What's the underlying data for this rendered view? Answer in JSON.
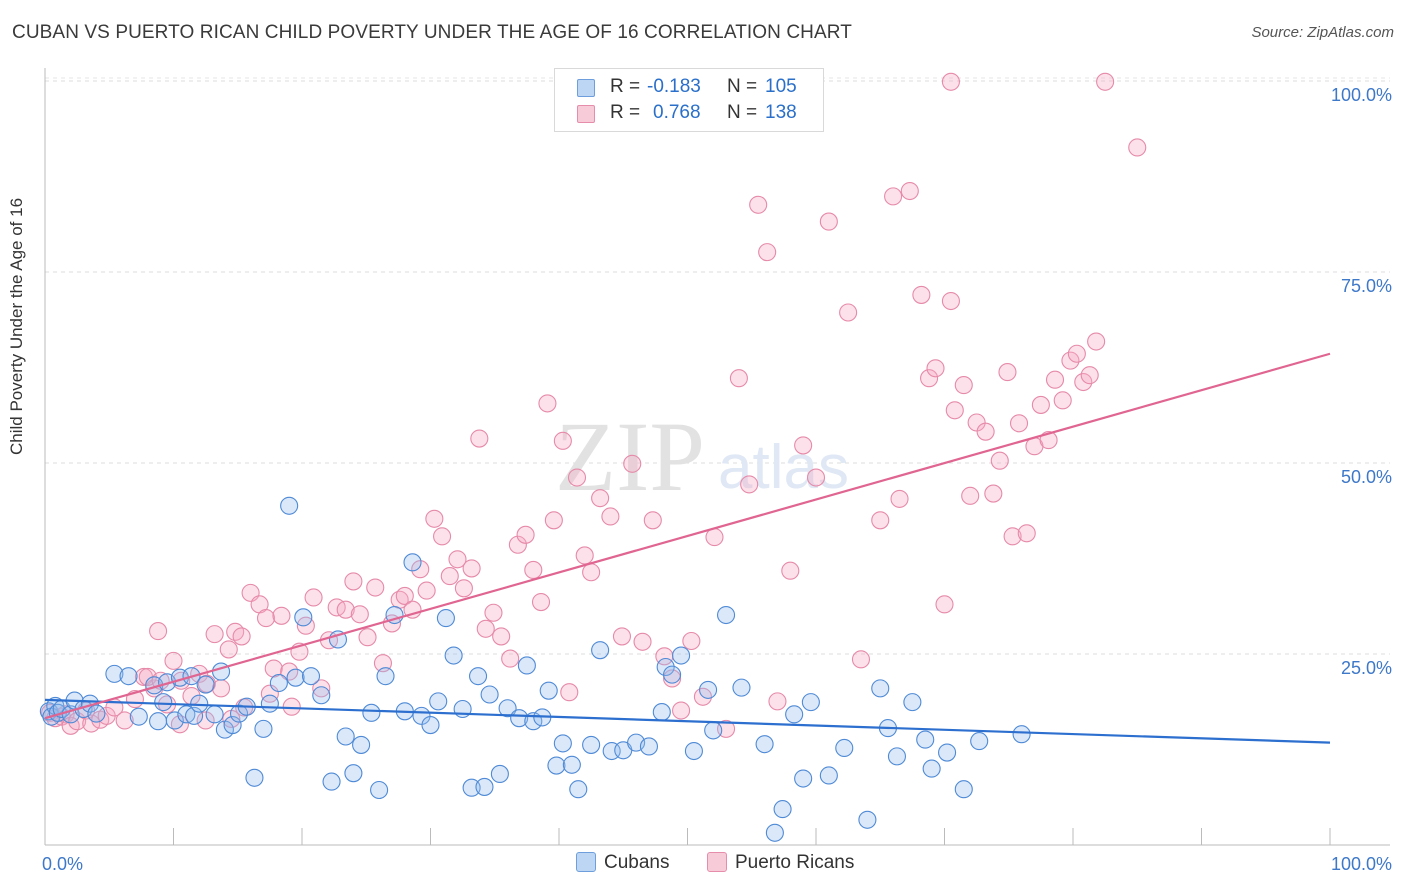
{
  "title": "CUBAN VS PUERTO RICAN CHILD POVERTY UNDER THE AGE OF 16 CORRELATION CHART",
  "source": "Source: ZipAtlas.com",
  "watermark": {
    "zip": "ZIP",
    "atlas": "atlas"
  },
  "legend": {
    "r_label": "R =",
    "n_label": "N =",
    "cubans": {
      "r": "-0.183",
      "n": "105",
      "color": "#9cc3ee",
      "stroke": "#4a86d4"
    },
    "puerto_ricans": {
      "r": "0.768",
      "n": "138",
      "color": "#f5b8cb",
      "stroke": "#e07fa0"
    }
  },
  "bottom_legend": {
    "cubans": "Cubans",
    "puerto_ricans": "Puerto Ricans"
  },
  "chart_data": {
    "type": "scatter",
    "title": "CUBAN VS PUERTO RICAN CHILD POVERTY UNDER THE AGE OF 16 CORRELATION CHART",
    "xlabel": "",
    "ylabel": "Child Poverty Under the Age of 16",
    "xlim": [
      0,
      100
    ],
    "ylim": [
      0,
      102
    ],
    "x_tick_labels": [
      "0.0%",
      "100.0%"
    ],
    "y_ticks": [
      25,
      50,
      75,
      100
    ],
    "y_tick_labels": [
      "25.0%",
      "50.0%",
      "75.0%",
      "100.0%"
    ],
    "series": [
      {
        "name": "Cubans",
        "color": "#4a86d4",
        "trend": {
          "x": [
            0,
            100
          ],
          "y": [
            19.0,
            13.4
          ]
        },
        "points": [
          [
            0.3,
            17.5
          ],
          [
            0.5,
            16.8
          ],
          [
            0.8,
            18.2
          ],
          [
            1.0,
            17.3
          ],
          [
            1.3,
            17.8
          ],
          [
            2.0,
            17.1
          ],
          [
            2.3,
            18.9
          ],
          [
            3.0,
            17.8
          ],
          [
            3.5,
            18.5
          ],
          [
            4.0,
            17.2
          ],
          [
            5.4,
            22.4
          ],
          [
            6.5,
            22.1
          ],
          [
            7.3,
            16.8
          ],
          [
            8.5,
            20.9
          ],
          [
            8.8,
            16.2
          ],
          [
            9.2,
            18.7
          ],
          [
            9.5,
            21.3
          ],
          [
            10.1,
            16.3
          ],
          [
            10.5,
            21.9
          ],
          [
            11.0,
            17.1
          ],
          [
            11.4,
            22.1
          ],
          [
            11.6,
            16.9
          ],
          [
            12.0,
            18.5
          ],
          [
            12.5,
            21.0
          ],
          [
            13.2,
            17.1
          ],
          [
            13.7,
            22.7
          ],
          [
            14.0,
            15.1
          ],
          [
            14.6,
            15.7
          ],
          [
            15.1,
            17.2
          ],
          [
            15.7,
            18.1
          ],
          [
            16.3,
            8.8
          ],
          [
            17.0,
            15.2
          ],
          [
            17.5,
            18.5
          ],
          [
            18.2,
            21.2
          ],
          [
            19.0,
            44.4
          ],
          [
            19.5,
            21.9
          ],
          [
            20.1,
            29.8
          ],
          [
            20.7,
            22.1
          ],
          [
            21.5,
            19.6
          ],
          [
            22.3,
            8.3
          ],
          [
            22.8,
            26.9
          ],
          [
            23.4,
            14.2
          ],
          [
            24.0,
            9.4
          ],
          [
            24.6,
            13.1
          ],
          [
            25.4,
            17.3
          ],
          [
            26.0,
            7.2
          ],
          [
            26.5,
            22.1
          ],
          [
            27.2,
            30.1
          ],
          [
            28.0,
            17.5
          ],
          [
            28.6,
            37.0
          ],
          [
            29.3,
            16.9
          ],
          [
            30.0,
            15.7
          ],
          [
            30.6,
            18.8
          ],
          [
            31.2,
            29.7
          ],
          [
            31.8,
            24.8
          ],
          [
            32.5,
            17.8
          ],
          [
            33.2,
            7.5
          ],
          [
            33.7,
            22.1
          ],
          [
            34.2,
            7.6
          ],
          [
            34.6,
            19.7
          ],
          [
            35.4,
            9.3
          ],
          [
            36.0,
            17.9
          ],
          [
            36.9,
            16.6
          ],
          [
            37.5,
            23.5
          ],
          [
            38.0,
            16.2
          ],
          [
            38.7,
            16.7
          ],
          [
            39.2,
            20.2
          ],
          [
            39.8,
            10.4
          ],
          [
            40.3,
            13.3
          ],
          [
            41.0,
            10.5
          ],
          [
            41.5,
            7.3
          ],
          [
            42.5,
            13.1
          ],
          [
            43.2,
            25.5
          ],
          [
            44.1,
            12.3
          ],
          [
            45.0,
            12.4
          ],
          [
            46.0,
            13.4
          ],
          [
            47.0,
            12.9
          ],
          [
            48.0,
            17.4
          ],
          [
            48.3,
            23.3
          ],
          [
            48.8,
            22.3
          ],
          [
            49.5,
            24.8
          ],
          [
            50.5,
            12.3
          ],
          [
            51.6,
            20.3
          ],
          [
            52.0,
            15.0
          ],
          [
            53.0,
            30.1
          ],
          [
            54.2,
            20.6
          ],
          [
            56.0,
            13.2
          ],
          [
            56.8,
            1.6
          ],
          [
            57.4,
            4.7
          ],
          [
            58.3,
            17.1
          ],
          [
            59.0,
            8.7
          ],
          [
            59.6,
            18.7
          ],
          [
            61.0,
            9.1
          ],
          [
            62.2,
            12.7
          ],
          [
            64.0,
            3.3
          ],
          [
            65.0,
            20.5
          ],
          [
            65.6,
            15.3
          ],
          [
            66.3,
            11.6
          ],
          [
            67.5,
            18.7
          ],
          [
            68.5,
            13.8
          ],
          [
            69.0,
            10.0
          ],
          [
            70.2,
            12.1
          ],
          [
            71.5,
            7.3
          ],
          [
            72.7,
            13.6
          ],
          [
            76.0,
            14.5
          ]
        ]
      },
      {
        "name": "Puerto Ricans",
        "color": "#e07fa0",
        "trend": {
          "x": [
            0,
            100
          ],
          "y": [
            16.6,
            64.3
          ]
        },
        "points": [
          [
            0.4,
            17.3
          ],
          [
            0.8,
            16.6
          ],
          [
            1.3,
            16.8
          ],
          [
            1.6,
            17.1
          ],
          [
            2.0,
            15.6
          ],
          [
            2.5,
            16.2
          ],
          [
            3.2,
            17.6
          ],
          [
            3.6,
            15.9
          ],
          [
            4.3,
            16.4
          ],
          [
            4.8,
            16.9
          ],
          [
            5.4,
            18.0
          ],
          [
            6.2,
            16.3
          ],
          [
            7.0,
            19.1
          ],
          [
            7.7,
            22.0
          ],
          [
            8.5,
            20.5
          ],
          [
            8.8,
            28.0
          ],
          [
            9.5,
            18.4
          ],
          [
            10.0,
            24.1
          ],
          [
            10.6,
            21.5
          ],
          [
            11.4,
            19.5
          ],
          [
            12.0,
            22.4
          ],
          [
            12.6,
            21.1
          ],
          [
            13.2,
            27.6
          ],
          [
            13.7,
            20.5
          ],
          [
            14.3,
            25.6
          ],
          [
            14.8,
            27.9
          ],
          [
            15.3,
            27.3
          ],
          [
            16.0,
            33.0
          ],
          [
            16.7,
            31.5
          ],
          [
            17.2,
            29.7
          ],
          [
            17.8,
            23.1
          ],
          [
            18.4,
            30.0
          ],
          [
            19.0,
            22.7
          ],
          [
            19.8,
            25.3
          ],
          [
            20.3,
            28.7
          ],
          [
            20.9,
            32.4
          ],
          [
            21.5,
            20.5
          ],
          [
            22.1,
            26.8
          ],
          [
            22.7,
            31.1
          ],
          [
            23.4,
            30.8
          ],
          [
            24.0,
            34.5
          ],
          [
            24.5,
            30.2
          ],
          [
            25.1,
            27.2
          ],
          [
            25.7,
            33.7
          ],
          [
            26.3,
            23.8
          ],
          [
            27.0,
            29.0
          ],
          [
            27.6,
            32.1
          ],
          [
            28.0,
            32.6
          ],
          [
            28.6,
            30.8
          ],
          [
            29.2,
            36.1
          ],
          [
            29.7,
            33.3
          ],
          [
            30.3,
            42.7
          ],
          [
            30.9,
            40.4
          ],
          [
            31.5,
            35.2
          ],
          [
            32.1,
            37.4
          ],
          [
            32.6,
            33.6
          ],
          [
            33.2,
            36.2
          ],
          [
            33.8,
            53.2
          ],
          [
            34.3,
            28.3
          ],
          [
            34.9,
            30.4
          ],
          [
            35.5,
            27.3
          ],
          [
            36.2,
            24.4
          ],
          [
            36.8,
            39.3
          ],
          [
            37.4,
            40.6
          ],
          [
            38.0,
            36.0
          ],
          [
            38.6,
            31.8
          ],
          [
            39.1,
            57.8
          ],
          [
            39.6,
            42.5
          ],
          [
            40.3,
            52.9
          ],
          [
            40.8,
            20.0
          ],
          [
            41.4,
            48.1
          ],
          [
            42.0,
            37.9
          ],
          [
            42.5,
            35.7
          ],
          [
            43.2,
            45.4
          ],
          [
            44.0,
            43.0
          ],
          [
            44.9,
            27.3
          ],
          [
            45.7,
            49.9
          ],
          [
            46.5,
            26.6
          ],
          [
            47.3,
            42.5
          ],
          [
            48.2,
            24.7
          ],
          [
            48.8,
            21.8
          ],
          [
            49.5,
            17.6
          ],
          [
            50.3,
            26.7
          ],
          [
            51.2,
            19.4
          ],
          [
            52.1,
            40.3
          ],
          [
            53.0,
            15.2
          ],
          [
            54.0,
            61.1
          ],
          [
            54.8,
            47.2
          ],
          [
            55.5,
            83.8
          ],
          [
            56.2,
            77.6
          ],
          [
            57.0,
            18.8
          ],
          [
            58.0,
            35.9
          ],
          [
            59.0,
            52.3
          ],
          [
            60.0,
            48.1
          ],
          [
            61.0,
            81.6
          ],
          [
            62.5,
            69.7
          ],
          [
            63.5,
            24.3
          ],
          [
            65.0,
            42.5
          ],
          [
            66.0,
            84.9
          ],
          [
            66.5,
            45.3
          ],
          [
            67.3,
            85.6
          ],
          [
            68.2,
            72.0
          ],
          [
            68.8,
            61.1
          ],
          [
            69.3,
            62.4
          ],
          [
            70.0,
            31.5
          ],
          [
            70.5,
            71.2
          ],
          [
            70.8,
            56.9
          ],
          [
            71.5,
            60.2
          ],
          [
            72.0,
            45.7
          ],
          [
            72.5,
            55.3
          ],
          [
            73.2,
            54.1
          ],
          [
            73.8,
            46.0
          ],
          [
            74.3,
            50.3
          ],
          [
            74.9,
            61.9
          ],
          [
            75.3,
            40.4
          ],
          [
            75.8,
            55.2
          ],
          [
            76.4,
            40.8
          ],
          [
            77.0,
            52.2
          ],
          [
            77.5,
            57.6
          ],
          [
            78.1,
            53.0
          ],
          [
            78.6,
            60.9
          ],
          [
            79.2,
            58.2
          ],
          [
            79.8,
            63.4
          ],
          [
            80.3,
            64.3
          ],
          [
            80.8,
            60.6
          ],
          [
            81.3,
            61.5
          ],
          [
            81.8,
            65.9
          ],
          [
            82.5,
            99.9
          ],
          [
            70.5,
            99.9
          ],
          [
            85.0,
            91.3
          ],
          [
            8.0,
            22.0
          ],
          [
            9.0,
            21.5
          ],
          [
            10.5,
            15.8
          ],
          [
            12.5,
            16.3
          ],
          [
            14.5,
            16.5
          ],
          [
            15.5,
            18.0
          ],
          [
            17.5,
            19.8
          ],
          [
            19.2,
            18.1
          ]
        ]
      }
    ]
  }
}
